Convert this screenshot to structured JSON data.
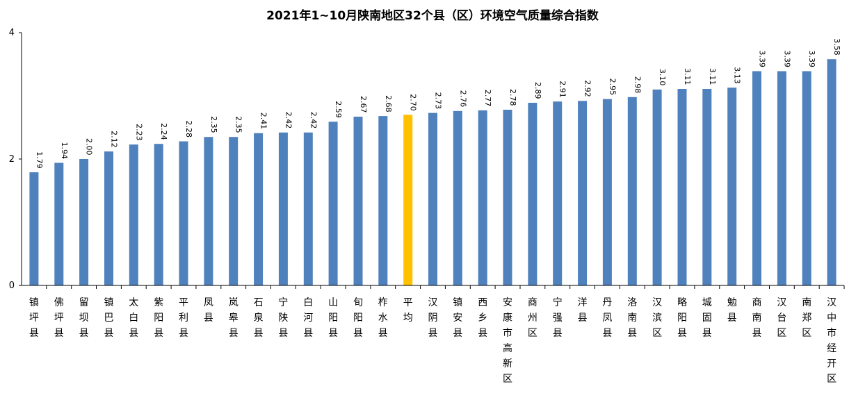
{
  "chart_data": {
    "type": "bar",
    "title": "2021年1~10月陕南地区32个县（区）环境空气质量综合指数",
    "xlabel": "",
    "ylabel": "",
    "ylim": [
      0,
      4
    ],
    "yticks": [
      "0",
      "2",
      "4"
    ],
    "grid": false,
    "categories": [
      "镇坪县",
      "佛坪县",
      "留坝县",
      "镇巴县",
      "太白县",
      "紫阳县",
      "平利县",
      "凤县",
      "岚皋县",
      "石泉县",
      "宁陕县",
      "白河县",
      "山阳县",
      "旬阳县",
      "柞水县",
      "平均",
      "汉阴县",
      "镇安县",
      "西乡县",
      "安康市高新区",
      "商州区",
      "宁强县",
      "洋县",
      "丹凤县",
      "洛南县",
      "汉滨区",
      "略阳县",
      "城固县",
      "勉县",
      "商南县",
      "汉台区",
      "南郑区",
      "汉中市经开区"
    ],
    "values": [
      1.79,
      1.94,
      2.0,
      2.12,
      2.23,
      2.24,
      2.28,
      2.35,
      2.35,
      2.41,
      2.42,
      2.42,
      2.59,
      2.67,
      2.68,
      2.7,
      2.73,
      2.76,
      2.77,
      2.78,
      2.89,
      2.91,
      2.92,
      2.95,
      2.98,
      3.1,
      3.11,
      3.11,
      3.13,
      3.39,
      3.39,
      3.39,
      3.58
    ],
    "labels": [
      "1.79",
      "1.94",
      "2.00",
      "2.12",
      "2.23",
      "2.24",
      "2.28",
      "2.35",
      "2.35",
      "2.41",
      "2.42",
      "2.42",
      "2.59",
      "2.67",
      "2.68",
      "2.70",
      "2.73",
      "2.76",
      "2.77",
      "2.78",
      "2.89",
      "2.91",
      "2.92",
      "2.95",
      "2.98",
      "3.10",
      "3.11",
      "3.11",
      "3.13",
      "3.39",
      "3.39",
      "3.39",
      "3.58"
    ],
    "colors": {
      "bar": "#4F81BD",
      "highlight": "#FFC000",
      "axis": "#000000"
    },
    "highlight_category": "平均"
  }
}
